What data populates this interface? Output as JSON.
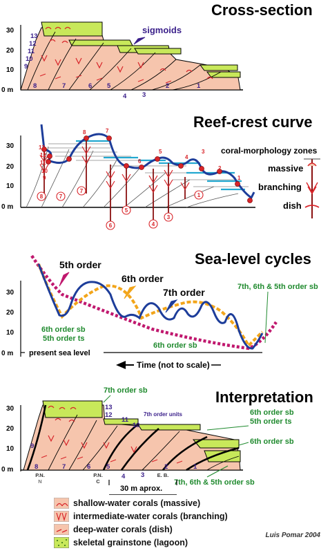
{
  "panels": {
    "cross_section": {
      "title": "Cross-section",
      "y_ticks": [
        "30",
        "20",
        "10",
        "0 m"
      ],
      "units": [
        "13",
        "12",
        "11",
        "10",
        "9"
      ],
      "bottom_numbers": [
        "8",
        "7",
        "6",
        "5",
        "4",
        "3",
        "2",
        "1"
      ],
      "annotation": "sigmoids"
    },
    "reef_crest": {
      "title": "Reef-crest curve",
      "y_ticks": [
        "30",
        "20",
        "10",
        "0 m"
      ],
      "curve_numbers": [
        "13",
        "12",
        "11",
        "10",
        "9",
        "8",
        "7",
        "6",
        "5",
        "4",
        "3",
        "2",
        "1"
      ],
      "circled_numbers": [
        "8",
        "7",
        "6",
        "5",
        "4",
        "3",
        "2",
        "1"
      ],
      "zones_label": "coral-morphology zones",
      "zones": [
        "massive",
        "branching",
        "dish"
      ]
    },
    "sea_level": {
      "title": "Sea-level cycles",
      "y_ticks": [
        "30",
        "20",
        "10",
        "0 m"
      ],
      "order_labels": [
        "5th order",
        "6th order",
        "7th order"
      ],
      "sb_label_1a": "6th order sb",
      "sb_label_1b": "5th order ts",
      "sb_label_2": "6th order sb",
      "sb_label_3a": "7th, 6th & 5th order sb",
      "baseline": "present sea level",
      "time_label": "Time (not to scale)"
    },
    "interpretation": {
      "title": "Interpretation",
      "y_ticks": [
        "30",
        "20",
        "10",
        "0 m"
      ],
      "top_sb": "7th order sb",
      "units": [
        "13",
        "12",
        "11",
        "10",
        "9"
      ],
      "units_label": "7th order units",
      "right_1a": "6th order sb",
      "right_1b": "5th order ts",
      "right_2": "6th order sb",
      "right_3": "7th, 6th & 5th order sb",
      "bottom_numbers": [
        "8",
        "7",
        "6",
        "5",
        "4",
        "3",
        "2",
        "1"
      ],
      "loc_pn_n_a": "P.N.",
      "loc_pn_n_b": "N",
      "loc_pn_c_a": "P.N.",
      "loc_pn_c_b": "C",
      "loc_eb": "E. B.",
      "scale_bar": "30 m aprox."
    }
  },
  "legend": [
    {
      "label": "shallow-water corals (massive)"
    },
    {
      "label": "intermediate-water corals (branching)"
    },
    {
      "label": "deep-water corals (dish)"
    },
    {
      "label": "skeletal grainstone (lagoon)"
    }
  ],
  "credit": "Luis Pomar 2004",
  "colors": {
    "reef": "#f6c5ad",
    "lagoon": "#c8e85a",
    "coral": "#d8252a",
    "label_blue": "#3a1f8a",
    "label_green": "#1f8a2e",
    "curve_blue": "#1d3d9a",
    "dotted_magenta": "#c0186e",
    "dashed_orange": "#f2a51a",
    "cyan": "#22a8d0"
  }
}
